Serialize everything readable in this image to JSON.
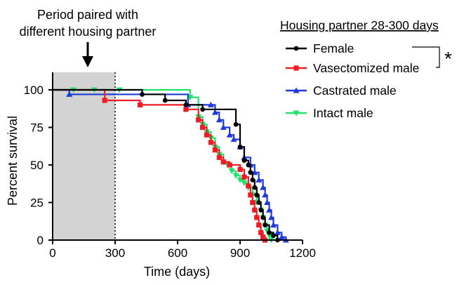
{
  "chart_data": {
    "type": "line",
    "xlabel": "Time (days)",
    "ylabel": "Percent survival",
    "xlim": [
      0,
      1200
    ],
    "ylim": [
      0,
      100
    ],
    "xticks": [
      "0",
      "300",
      "600",
      "900",
      "1200"
    ],
    "yticks": [
      "0",
      "25",
      "50",
      "75",
      "100"
    ],
    "annotation": {
      "line1": "Period paired with",
      "line2": "different housing partner",
      "shaded_range": [
        0,
        300
      ]
    },
    "legend": {
      "title": "Housing partner 28-300 days",
      "position": "top-right"
    },
    "significance": {
      "marker": "*",
      "color": "#ee1c24",
      "between": [
        "Female",
        "Vasectomized male"
      ]
    },
    "series": [
      {
        "name": "Female",
        "color": "#000000",
        "marker": "circle",
        "points": [
          [
            0,
            100
          ],
          [
            430,
            97
          ],
          [
            540,
            93
          ],
          [
            640,
            90
          ],
          [
            720,
            87
          ],
          [
            880,
            77
          ],
          [
            900,
            62
          ],
          [
            920,
            53
          ],
          [
            940,
            50
          ],
          [
            950,
            45
          ],
          [
            960,
            40
          ],
          [
            970,
            35
          ],
          [
            980,
            30
          ],
          [
            990,
            25
          ],
          [
            1000,
            20
          ],
          [
            1010,
            15
          ],
          [
            1020,
            10
          ],
          [
            1040,
            5
          ],
          [
            1060,
            3
          ],
          [
            1080,
            0
          ]
        ]
      },
      {
        "name": "Vasectomized male",
        "color": "#ee1c24",
        "marker": "square",
        "points": [
          [
            0,
            100
          ],
          [
            250,
            93
          ],
          [
            420,
            90
          ],
          [
            640,
            87
          ],
          [
            700,
            80
          ],
          [
            720,
            75
          ],
          [
            740,
            70
          ],
          [
            760,
            65
          ],
          [
            780,
            60
          ],
          [
            800,
            55
          ],
          [
            820,
            52
          ],
          [
            850,
            50
          ],
          [
            900,
            47
          ],
          [
            920,
            42
          ],
          [
            940,
            36
          ],
          [
            950,
            30
          ],
          [
            960,
            25
          ],
          [
            970,
            20
          ],
          [
            980,
            15
          ],
          [
            990,
            10
          ],
          [
            1000,
            5
          ],
          [
            1010,
            2
          ],
          [
            1020,
            0
          ]
        ]
      },
      {
        "name": "Castrated male",
        "color": "#1f3bd7",
        "marker": "triangle-up",
        "points": [
          [
            0,
            100
          ],
          [
            80,
            97
          ],
          [
            650,
            90
          ],
          [
            760,
            90
          ],
          [
            780,
            85
          ],
          [
            800,
            80
          ],
          [
            820,
            75
          ],
          [
            850,
            70
          ],
          [
            870,
            67
          ],
          [
            900,
            62
          ],
          [
            920,
            55
          ],
          [
            950,
            50
          ],
          [
            970,
            45
          ],
          [
            990,
            40
          ],
          [
            1010,
            35
          ],
          [
            1020,
            30
          ],
          [
            1030,
            25
          ],
          [
            1040,
            20
          ],
          [
            1050,
            15
          ],
          [
            1060,
            10
          ],
          [
            1080,
            5
          ],
          [
            1100,
            2
          ],
          [
            1120,
            0
          ]
        ]
      },
      {
        "name": "Intact male",
        "color": "#1ee36b",
        "marker": "triangle-down",
        "points": [
          [
            0,
            100
          ],
          [
            100,
            100
          ],
          [
            200,
            100
          ],
          [
            320,
            100
          ],
          [
            660,
            95
          ],
          [
            700,
            82
          ],
          [
            720,
            77
          ],
          [
            740,
            72
          ],
          [
            760,
            68
          ],
          [
            780,
            62
          ],
          [
            800,
            57
          ],
          [
            820,
            52
          ],
          [
            840,
            50
          ],
          [
            860,
            46
          ],
          [
            880,
            43
          ],
          [
            900,
            40
          ],
          [
            920,
            38
          ],
          [
            940,
            35
          ],
          [
            960,
            30
          ],
          [
            980,
            25
          ],
          [
            1000,
            20
          ],
          [
            1010,
            15
          ],
          [
            1020,
            10
          ],
          [
            1030,
            6
          ],
          [
            1040,
            3
          ],
          [
            1050,
            0
          ]
        ]
      }
    ]
  }
}
